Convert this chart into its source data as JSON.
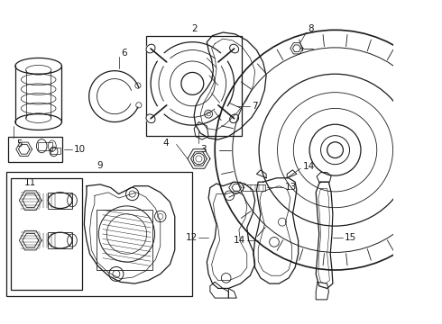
{
  "bg_color": "#ffffff",
  "line_color": "#1a1a1a",
  "fig_w": 4.9,
  "fig_h": 3.6,
  "dpi": 100
}
